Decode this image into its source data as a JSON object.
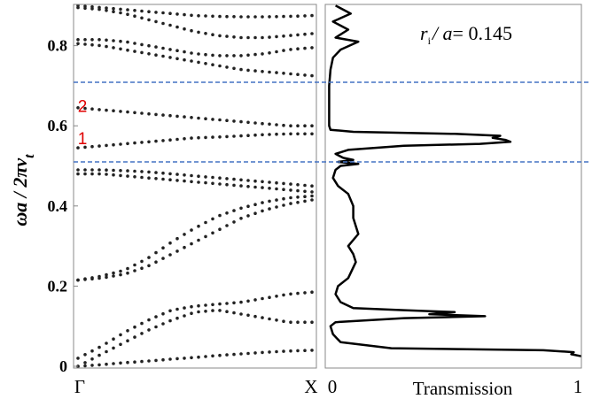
{
  "chart_data": [
    {
      "type": "scatter",
      "title": "",
      "ylabel": "ωa / 2πv_t",
      "ylabel_parts": {
        "main": "ωa / 2πv",
        "sub": "t"
      },
      "ylim": [
        0,
        0.9
      ],
      "yticks": [
        0,
        0.2,
        0.4,
        0.6,
        0.8
      ],
      "ytick_labels": [
        "0",
        "0.2",
        "0.4",
        "0.6",
        "0.8"
      ],
      "xtick_labels": [
        "Γ",
        "X"
      ],
      "band_labels": [
        "1",
        "2"
      ],
      "band_label_y": [
        0.57,
        0.65
      ],
      "band_label_color": "#e00000",
      "point_color": "#222222",
      "x": [
        0,
        0.1,
        0.2,
        0.3,
        0.4,
        0.5,
        0.6,
        0.7,
        0.8,
        0.9,
        1.0
      ],
      "series": [
        {
          "values": [
            0.0,
            0.004,
            0.009,
            0.013,
            0.018,
            0.022,
            0.027,
            0.031,
            0.035,
            0.038,
            0.04
          ]
        },
        {
          "values": [
            0.0,
            0.03,
            0.06,
            0.09,
            0.115,
            0.135,
            0.14,
            0.13,
            0.12,
            0.11,
            0.11
          ]
        },
        {
          "values": [
            0.02,
            0.05,
            0.085,
            0.115,
            0.14,
            0.15,
            0.155,
            0.16,
            0.17,
            0.18,
            0.185
          ]
        },
        {
          "values": [
            0.215,
            0.22,
            0.23,
            0.25,
            0.28,
            0.31,
            0.34,
            0.37,
            0.39,
            0.405,
            0.415
          ]
        },
        {
          "values": [
            0.215,
            0.225,
            0.24,
            0.27,
            0.31,
            0.345,
            0.375,
            0.395,
            0.41,
            0.42,
            0.425
          ]
        },
        {
          "values": [
            0.48,
            0.48,
            0.475,
            0.47,
            0.465,
            0.46,
            0.455,
            0.45,
            0.445,
            0.44,
            0.435
          ]
        },
        {
          "values": [
            0.49,
            0.49,
            0.488,
            0.485,
            0.48,
            0.475,
            0.47,
            0.465,
            0.46,
            0.455,
            0.45
          ]
        },
        {
          "values": [
            0.545,
            0.55,
            0.555,
            0.56,
            0.565,
            0.57,
            0.572,
            0.575,
            0.578,
            0.58,
            0.58
          ]
        },
        {
          "values": [
            0.645,
            0.64,
            0.635,
            0.63,
            0.625,
            0.62,
            0.615,
            0.61,
            0.605,
            0.6,
            0.6
          ]
        },
        {
          "values": [
            0.805,
            0.8,
            0.79,
            0.78,
            0.77,
            0.76,
            0.75,
            0.74,
            0.735,
            0.73,
            0.725
          ]
        },
        {
          "values": [
            0.815,
            0.815,
            0.81,
            0.8,
            0.79,
            0.78,
            0.775,
            0.775,
            0.78,
            0.79,
            0.795
          ]
        },
        {
          "values": [
            0.895,
            0.89,
            0.88,
            0.865,
            0.85,
            0.835,
            0.825,
            0.82,
            0.82,
            0.825,
            0.83
          ]
        },
        {
          "values": [
            0.9,
            0.895,
            0.89,
            0.885,
            0.88,
            0.875,
            0.873,
            0.872,
            0.872,
            0.873,
            0.875
          ]
        }
      ]
    },
    {
      "type": "line",
      "title": "",
      "xlabel": "Transmission",
      "xlim": [
        0,
        1
      ],
      "xtick_labels": [
        "0",
        "1"
      ],
      "ylim": [
        0,
        0.9
      ],
      "line_color": "#000000",
      "annotation": {
        "italic_r": "r",
        "sub": "i",
        "italic_slash_a": "/ a",
        "value": "= 0.145"
      },
      "x": [
        0.03,
        0.09,
        0.02,
        0.08,
        0.03,
        0.12,
        0.05,
        0.02,
        0.01,
        0.005,
        0.005,
        0.005,
        0.01,
        0.1,
        0.5,
        0.68,
        0.65,
        0.7,
        0.72,
        0.6,
        0.3,
        0.08,
        0.03,
        0.06,
        0.1,
        0.04,
        0.12,
        0.05,
        0.03,
        0.02,
        0.04,
        0.08,
        0.1,
        0.1,
        0.12,
        0.08,
        0.1,
        0.11,
        0.08,
        0.04,
        0.03,
        0.05,
        0.1,
        0.3,
        0.5,
        0.4,
        0.62,
        0.3,
        0.03,
        0.01,
        0.02,
        0.05,
        0.25,
        0.85,
        0.97,
        0.96,
        1.0
      ],
      "y": [
        0.9,
        0.88,
        0.86,
        0.84,
        0.82,
        0.81,
        0.79,
        0.77,
        0.74,
        0.7,
        0.65,
        0.6,
        0.59,
        0.585,
        0.58,
        0.575,
        0.57,
        0.565,
        0.56,
        0.555,
        0.55,
        0.54,
        0.53,
        0.52,
        0.515,
        0.51,
        0.505,
        0.5,
        0.49,
        0.47,
        0.45,
        0.43,
        0.4,
        0.37,
        0.33,
        0.3,
        0.28,
        0.26,
        0.22,
        0.2,
        0.18,
        0.16,
        0.145,
        0.14,
        0.135,
        0.13,
        0.125,
        0.12,
        0.11,
        0.1,
        0.08,
        0.06,
        0.045,
        0.04,
        0.035,
        0.03,
        0.025
      ]
    }
  ]
}
